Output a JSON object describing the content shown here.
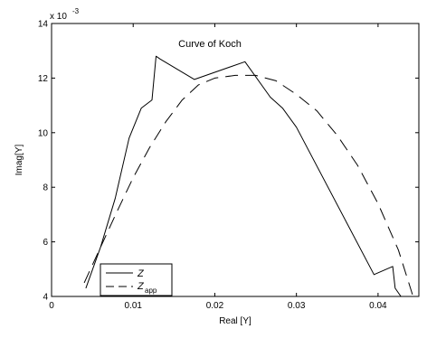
{
  "chart_data": {
    "type": "line",
    "title": "Curve of Koch",
    "xlabel": "Real [Y]",
    "ylabel": "Imag[Y]",
    "xlim": [
      0,
      0.045
    ],
    "ylim": [
      4,
      14
    ],
    "y_scale_exponent": "x 10",
    "y_scale_power": "-3",
    "xticks": [
      0,
      0.01,
      0.02,
      0.03,
      0.04
    ],
    "xtick_labels": [
      "0",
      "0.01",
      "0.02",
      "0.03",
      "0.04"
    ],
    "yticks": [
      4,
      6,
      8,
      10,
      12,
      14
    ],
    "ytick_labels": [
      "4",
      "6",
      "8",
      "10",
      "12",
      "14"
    ],
    "grid": false,
    "legend_position": "bottom-left",
    "series": [
      {
        "name": "Z",
        "legend_main": "Z",
        "legend_sub": "",
        "style": "solid",
        "color": "#000000",
        "x": [
          0.0042,
          0.006,
          0.0078,
          0.0095,
          0.011,
          0.0123,
          0.0128,
          0.0133,
          0.0175,
          0.0237,
          0.0268,
          0.0283,
          0.03,
          0.0395,
          0.0418,
          0.0421,
          0.0435
        ],
        "y": [
          4.3,
          5.8,
          7.6,
          9.8,
          10.9,
          11.2,
          12.8,
          12.7,
          11.95,
          12.6,
          11.3,
          10.9,
          10.2,
          4.8,
          5.1,
          4.3,
          3.7
        ]
      },
      {
        "name": "Z_app",
        "legend_main": "Z",
        "legend_sub": "app",
        "style": "dashed",
        "color": "#000000",
        "x": [
          0.004,
          0.006,
          0.008,
          0.01,
          0.012,
          0.014,
          0.016,
          0.018,
          0.02,
          0.0225,
          0.025,
          0.0275,
          0.03,
          0.0325,
          0.035,
          0.0375,
          0.04,
          0.0425,
          0.0445
        ],
        "y": [
          4.5,
          5.8,
          7.1,
          8.35,
          9.45,
          10.4,
          11.2,
          11.75,
          12.0,
          12.1,
          12.1,
          11.9,
          11.4,
          10.8,
          9.9,
          8.8,
          7.4,
          5.7,
          3.8
        ]
      }
    ]
  }
}
